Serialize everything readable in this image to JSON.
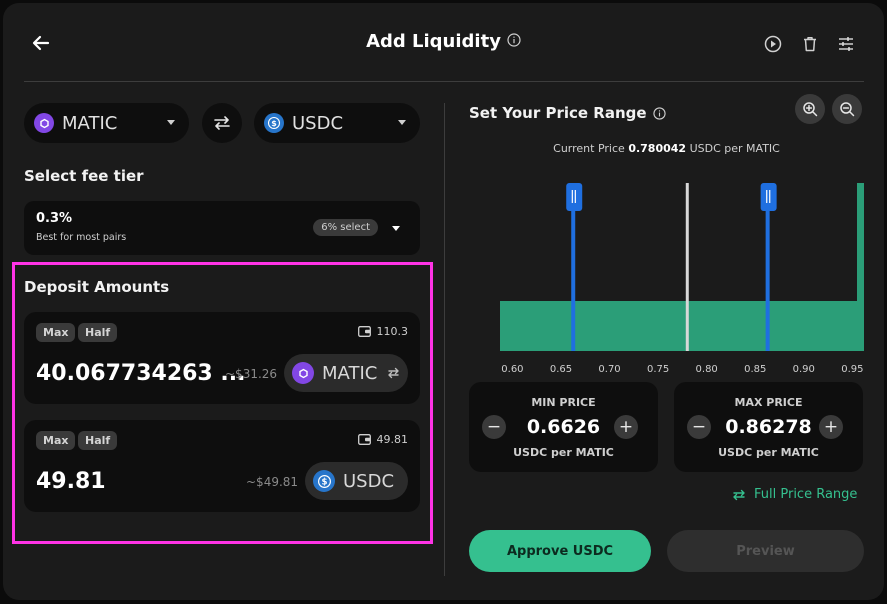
{
  "header": {
    "title": "Add Liquidity"
  },
  "token_pair": {
    "token_a": "MATIC",
    "token_b": "USDC"
  },
  "fee_tier": {
    "heading": "Select fee tier",
    "value": "0.3%",
    "description": "Best for most pairs",
    "select_chip": "6% select"
  },
  "deposit": {
    "heading": "Deposit Amounts",
    "rows": [
      {
        "max_label": "Max",
        "half_label": "Half",
        "balance": "110.3",
        "amount": "40.067734263 ...",
        "usd": "~$31.26",
        "token": "MATIC"
      },
      {
        "max_label": "Max",
        "half_label": "Half",
        "balance": "49.81",
        "amount": "49.81",
        "usd": "~$49.81",
        "token": "USDC"
      }
    ]
  },
  "price_range": {
    "heading": "Set Your Price Range",
    "current_label": "Current Price",
    "current_value": "0.780042",
    "current_unit": "USDC per MATIC",
    "axis_ticks": [
      "0.60",
      "0.65",
      "0.70",
      "0.75",
      "0.80",
      "0.85",
      "0.90",
      "0.95"
    ],
    "min_caption": "MIN PRICE",
    "min_value": "0.6626",
    "min_unit": "USDC per MATIC",
    "max_caption": "MAX PRICE",
    "max_value": "0.86278",
    "max_unit": "USDC per MATIC",
    "full_range_label": "Full Price Range",
    "minus_symbol": "−",
    "plus_symbol": "+"
  },
  "chart_data": {
    "type": "area",
    "x_range": [
      0.58,
      0.962
    ],
    "current_price": 0.780042,
    "range_min": 0.6626,
    "range_max": 0.86278,
    "liquidity_colors": {
      "range": "#2b9e78",
      "handle": "#1f6fe0",
      "current": "#d8d8d8"
    }
  },
  "actions": {
    "approve_label": "Approve USDC",
    "preview_label": "Preview"
  },
  "colors": {
    "accent": "#35c08f",
    "highlight_border": "#ff33e6",
    "panel_bg": "#1b1b1b"
  }
}
